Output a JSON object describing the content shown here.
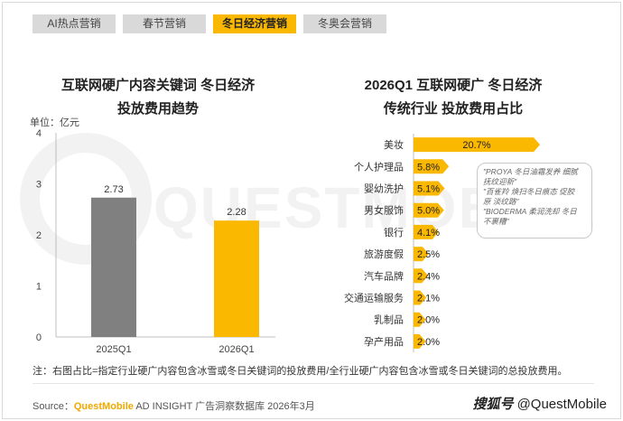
{
  "tabs": [
    {
      "label": "AI热点营销",
      "active": false
    },
    {
      "label": "春节营销",
      "active": false
    },
    {
      "label": "冬日经济营销",
      "active": true
    },
    {
      "label": "冬奥会营销",
      "active": false
    }
  ],
  "watermark_text": "QUESTMOBILE",
  "chart_data": [
    {
      "type": "bar",
      "title_line1": "互联网硬广内容关键词 冬日经济",
      "title_line2": "投放费用趋势",
      "unit_label": "单位：亿元",
      "categories": [
        "2025Q1",
        "2026Q1"
      ],
      "values": [
        2.73,
        2.28
      ],
      "value_labels": [
        "2.73",
        "2.28"
      ],
      "y_ticks": [
        "0",
        "1",
        "2",
        "3",
        "4"
      ],
      "ylim": [
        0,
        4
      ],
      "grid": false,
      "colors": [
        "#808080",
        "#fbb800"
      ]
    },
    {
      "type": "bar",
      "orientation": "horizontal",
      "title_line1": "2026Q1 互联网硬广 冬日经济",
      "title_line2": "传统行业 投放费用占比",
      "categories": [
        "美妆",
        "个人护理品",
        "婴幼洗护",
        "男女服饰",
        "银行",
        "旅游度假",
        "汽车品牌",
        "交通运输服务",
        "乳制品",
        "孕产用品"
      ],
      "values": [
        20.7,
        5.8,
        5.1,
        5.0,
        4.1,
        2.5,
        2.4,
        2.1,
        2.0,
        2.0
      ],
      "value_labels": [
        "20.7%",
        "5.8%",
        "5.1%",
        "5.0%",
        "4.1%",
        "2.5%",
        "2.4%",
        "2.1%",
        "2.0%",
        "2.0%"
      ],
      "color": "#fbb800",
      "callout": [
        "\"PROYA 冬日油霜发养 细腻",
        "抚纹迎新\"",
        "\"百雀羚 焕扫冬日痕态 促胶",
        "原 淡纹路\"",
        "\"BIODERMA 柔润洗却 冬日",
        "不裹糟\""
      ]
    }
  ],
  "note": "注：右图占比=指定行业硬广内容包含冰雪或冬日关键词的投放费用/全行业硬广内容包含冰雪或冬日关键词的总投放费用。",
  "source": {
    "prefix": "Source：",
    "brand": "QuestMobile",
    "text": " AD INSIGHT 广告洞察数据库 2026年3月"
  },
  "logo": {
    "mark": "搜狐号",
    "text": "@QuestMobile"
  }
}
